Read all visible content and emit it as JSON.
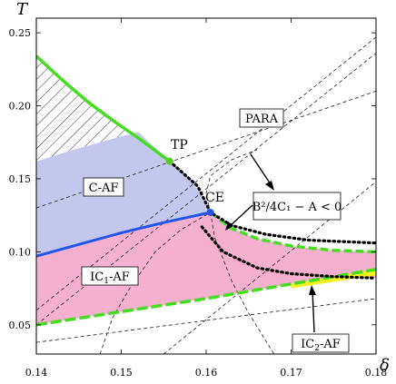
{
  "chart_data": {
    "type": "line",
    "xlabel": "δ",
    "ylabel": "T",
    "xlim": [
      0.14,
      0.18
    ],
    "ylim": [
      0.03,
      0.26
    ],
    "x_ticks": [
      "0.14",
      "0.15",
      "0.16",
      "0.17",
      "0.18"
    ],
    "y_ticks": [
      "0.05",
      "0.10",
      "0.15",
      "0.20",
      "0.25"
    ],
    "x_tick_values": [
      0.14,
      0.15,
      0.16,
      0.17,
      0.18
    ],
    "y_tick_values": [
      0.05,
      0.1,
      0.15,
      0.2,
      0.25
    ],
    "regions": [
      {
        "label": "PARA",
        "color": "#ffffff"
      },
      {
        "label": "C-AF",
        "color": "#c3c7ee"
      },
      {
        "label_main": "IC",
        "label_sub": "1",
        "label_rest": "-AF",
        "color": "#f5b0cf"
      },
      {
        "label_main": "IC",
        "label_sub": "2",
        "label_rest": "-AF",
        "color": "#f3f31e"
      }
    ],
    "points": [
      {
        "label": "TP",
        "x": 0.1557,
        "y": 0.162,
        "color": "#55cc22"
      },
      {
        "label": "CE",
        "x": 0.1605,
        "y": 0.127,
        "color": "#2255dd"
      }
    ],
    "annotation_text": "B²/4C₁ − A < 0",
    "colors": {
      "green_line": "#44dd22",
      "blue_line": "#2255ee",
      "hatch": "#333333",
      "dashed": "#222222",
      "dotted": "#000000"
    },
    "curves": {
      "upper_green": [
        [
          0.14,
          0.234
        ],
        [
          0.143,
          0.218
        ],
        [
          0.146,
          0.203
        ],
        [
          0.149,
          0.19
        ],
        [
          0.152,
          0.178
        ],
        [
          0.1557,
          0.162
        ],
        [
          0.158,
          0.151
        ],
        [
          0.16,
          0.14
        ]
      ],
      "c_af_top": [
        [
          0.14,
          0.162
        ],
        [
          0.145,
          0.171
        ],
        [
          0.15,
          0.179
        ],
        [
          0.152,
          0.182
        ],
        [
          0.1557,
          0.162
        ]
      ],
      "blue": [
        [
          0.14,
          0.097
        ],
        [
          0.145,
          0.105
        ],
        [
          0.15,
          0.113
        ],
        [
          0.155,
          0.12
        ],
        [
          0.1605,
          0.127
        ]
      ],
      "ic1_outer": [
        [
          0.1605,
          0.127
        ],
        [
          0.1595,
          0.128
        ],
        [
          0.159,
          0.14
        ],
        [
          0.158,
          0.151
        ],
        [
          0.1557,
          0.162
        ]
      ],
      "ic1_upper_green_dashed": [
        [
          0.1605,
          0.127
        ],
        [
          0.163,
          0.116
        ],
        [
          0.166,
          0.109
        ],
        [
          0.17,
          0.104
        ],
        [
          0.175,
          0.101
        ],
        [
          0.18,
          0.1
        ]
      ],
      "lower_green_dashed": [
        [
          0.14,
          0.05
        ],
        [
          0.15,
          0.059
        ],
        [
          0.16,
          0.068
        ],
        [
          0.17,
          0.078
        ],
        [
          0.18,
          0.088
        ]
      ],
      "ic2_bottom": [
        [
          0.14,
          0.047
        ],
        [
          0.15,
          0.056
        ],
        [
          0.16,
          0.065
        ],
        [
          0.17,
          0.075
        ],
        [
          0.18,
          0.084
        ]
      ],
      "ic1_lower_from_ce": [
        [
          0.1605,
          0.127
        ],
        [
          0.1595,
          0.117
        ],
        [
          0.162,
          0.101
        ],
        [
          0.166,
          0.09
        ],
        [
          0.17,
          0.085
        ],
        [
          0.175,
          0.083
        ],
        [
          0.18,
          0.082
        ]
      ],
      "dotted_upper": [
        [
          0.1557,
          0.162
        ],
        [
          0.159,
          0.145
        ],
        [
          0.1605,
          0.127
        ],
        [
          0.163,
          0.118
        ],
        [
          0.167,
          0.112
        ],
        [
          0.172,
          0.108
        ],
        [
          0.18,
          0.106
        ]
      ],
      "dotted_lower": [
        [
          0.1595,
          0.117
        ],
        [
          0.162,
          0.1
        ],
        [
          0.166,
          0.089
        ],
        [
          0.17,
          0.085
        ],
        [
          0.175,
          0.083
        ],
        [
          0.18,
          0.082
        ]
      ],
      "dashed_straight": [
        [
          [
            0.14,
            0.13
          ],
          [
            0.18,
            0.21
          ]
        ],
        [
          [
            0.14,
            0.06
          ],
          [
            0.18,
            0.247
          ]
        ],
        [
          [
            0.14,
            0.038
          ],
          [
            0.18,
            0.068
          ]
        ],
        [
          [
            0.14,
            0.05
          ],
          [
            0.18,
            0.236
          ]
        ],
        [
          [
            0.155,
            0.03
          ],
          [
            0.18,
            0.148
          ]
        ]
      ],
      "dashed_para_arc": [
        [
          0.1605,
          0.127
        ],
        [
          0.16,
          0.14
        ],
        [
          0.1605,
          0.152
        ],
        [
          0.163,
          0.163
        ],
        [
          0.166,
          0.17
        ]
      ],
      "dashed_para_arc_low": [
        [
          0.1605,
          0.127
        ],
        [
          0.161,
          0.11
        ],
        [
          0.163,
          0.08
        ],
        [
          0.165,
          0.058
        ],
        [
          0.168,
          0.03
        ]
      ],
      "dashed_left_arc": [
        [
          0.1475,
          0.03
        ],
        [
          0.149,
          0.055
        ],
        [
          0.151,
          0.075
        ],
        [
          0.154,
          0.1
        ],
        [
          0.157,
          0.115
        ],
        [
          0.1605,
          0.127
        ]
      ]
    }
  }
}
